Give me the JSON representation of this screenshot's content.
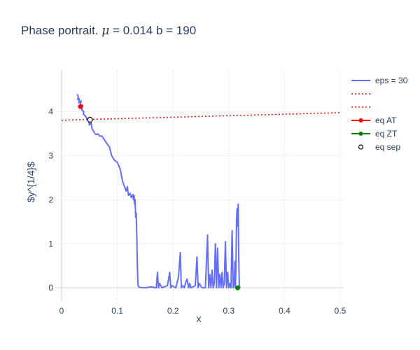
{
  "chart_data": {
    "type": "line",
    "title": {
      "prefix": "Phase portrait. ",
      "mu_symbol": "μ",
      "suffix": " = 0.014 b = 190"
    },
    "xlabel": "x",
    "ylabel": "$y^{1/4}$",
    "xlim": [
      -0.01,
      0.505
    ],
    "ylim": [
      -0.3,
      4.95
    ],
    "x_ticks": [
      0,
      0.1,
      0.2,
      0.3,
      0.4,
      0.5
    ],
    "x_tick_labels": [
      "0",
      "0.1",
      "0.2",
      "0.3",
      "0.4",
      "0.5"
    ],
    "y_ticks": [
      0,
      1,
      2,
      3,
      4
    ],
    "y_tick_labels": [
      "0",
      "1",
      "2",
      "3",
      "4"
    ],
    "grid": true,
    "legend_position": "right",
    "colors": {
      "trajectory": "#636efa",
      "nullcline": "#ff0000",
      "eq_AT": "#ff0000",
      "eq_ZT": "#008000",
      "eq_sep": "#000000",
      "grid": "#ebf0f8",
      "zeroline": "#e2e8f0"
    },
    "series": [
      {
        "name": "eps = 30",
        "kind": "line",
        "x": [
          0.028,
          0.03,
          0.029,
          0.032,
          0.031,
          0.035,
          0.033,
          0.038,
          0.036,
          0.04,
          0.039,
          0.043,
          0.045,
          0.048,
          0.05,
          0.053,
          0.055,
          0.058,
          0.06,
          0.062,
          0.065,
          0.068,
          0.072,
          0.075,
          0.08,
          0.083,
          0.086,
          0.09,
          0.095,
          0.1,
          0.105,
          0.11,
          0.113,
          0.116,
          0.118,
          0.12,
          0.123,
          0.125,
          0.127,
          0.128,
          0.129,
          0.13,
          0.131,
          0.132,
          0.133,
          0.134,
          0.135,
          0.136,
          0.137,
          0.138,
          0.14,
          0.15,
          0.16,
          0.17,
          0.172,
          0.174,
          0.176,
          0.18,
          0.19,
          0.194,
          0.196,
          0.198,
          0.205,
          0.21,
          0.213,
          0.215,
          0.217,
          0.22,
          0.225,
          0.228,
          0.23,
          0.232,
          0.24,
          0.243,
          0.245,
          0.247,
          0.252,
          0.258,
          0.262,
          0.264,
          0.266,
          0.268,
          0.27,
          0.272,
          0.274,
          0.276,
          0.278,
          0.28,
          0.282,
          0.284,
          0.286,
          0.288,
          0.29,
          0.292,
          0.294,
          0.296,
          0.298,
          0.3,
          0.302,
          0.304,
          0.306,
          0.308,
          0.31,
          0.311,
          0.312,
          0.313,
          0.314,
          0.315,
          0.316,
          0.317,
          0.318,
          0.319,
          0.32,
          0.318
        ],
        "y": [
          4.4,
          4.35,
          4.28,
          4.3,
          4.2,
          4.25,
          4.1,
          4.15,
          4.05,
          4.0,
          3.95,
          3.9,
          3.85,
          3.82,
          3.7,
          3.75,
          3.6,
          3.55,
          3.5,
          3.48,
          3.5,
          3.45,
          3.45,
          3.4,
          3.3,
          3.25,
          3.2,
          3.0,
          2.9,
          2.85,
          2.7,
          2.4,
          2.3,
          2.2,
          2.3,
          2.1,
          2.15,
          2.05,
          2.1,
          2.12,
          2.0,
          2.1,
          1.9,
          2.0,
          1.6,
          1.7,
          1.2,
          0.5,
          0.1,
          0.03,
          0.01,
          0.0,
          0.02,
          0.0,
          0.35,
          0.0,
          0.1,
          0.0,
          0.05,
          0.35,
          0.0,
          0.05,
          0.0,
          0.25,
          0.8,
          0.0,
          0.05,
          0.0,
          0.2,
          0.0,
          0.1,
          0.0,
          0.05,
          0.7,
          0.0,
          0.1,
          0.0,
          0.0,
          1.2,
          0.0,
          0.3,
          0.0,
          0.4,
          0.0,
          0.1,
          1.0,
          0.0,
          0.9,
          0.0,
          0.3,
          0.0,
          0.35,
          0.0,
          0.1,
          1.05,
          0.0,
          0.35,
          0.0,
          0.1,
          0.0,
          1.3,
          0.0,
          0.1,
          0.6,
          0.0,
          0.5,
          1.55,
          1.8,
          1.4,
          1.9,
          0.7,
          0.0,
          0.02,
          0.0
        ]
      },
      {
        "name": "",
        "kind": "dotted-line",
        "x": [
          0.0,
          0.5
        ],
        "y": [
          3.81,
          3.98
        ]
      },
      {
        "name": "",
        "kind": "dotted-line",
        "x": [],
        "y": []
      },
      {
        "name": "eq AT",
        "kind": "marker",
        "x": [
          0.034
        ],
        "y": [
          4.12
        ]
      },
      {
        "name": "eq ZT",
        "kind": "marker",
        "x": [
          0.316
        ],
        "y": [
          0.0
        ]
      },
      {
        "name": "eq sep",
        "kind": "open-marker",
        "x": [
          0.051
        ],
        "y": [
          3.82
        ]
      }
    ]
  }
}
